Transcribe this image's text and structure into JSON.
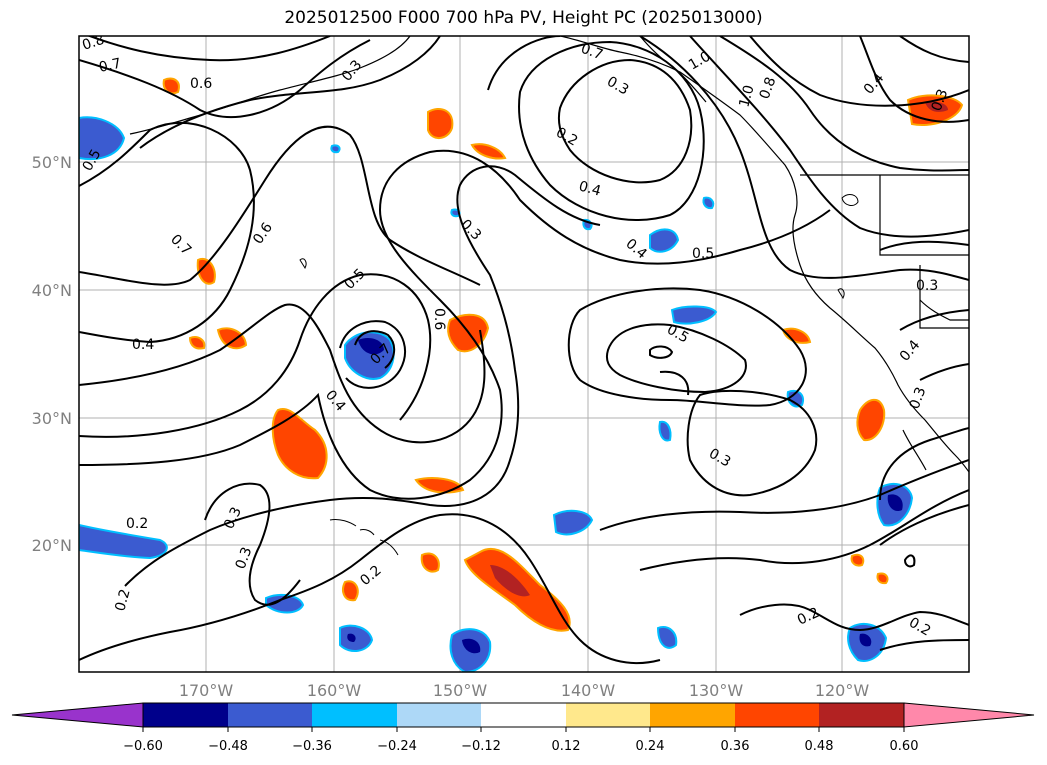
{
  "title": "2025012500 F000 700 hPa PV, Height PC (2025013000)",
  "map": {
    "lat_labels": [
      "50°N",
      "40°N",
      "30°N",
      "20°N"
    ],
    "lon_labels": [
      "170°W",
      "160°W",
      "150°W",
      "140°W",
      "130°W",
      "120°W"
    ],
    "contour_labels": [
      "0.8",
      "0.7",
      "0.6",
      "0.5",
      "0.7",
      "0.6",
      "0.4",
      "0.5",
      "0.6",
      "0.7",
      "0.4",
      "0.3",
      "0.3",
      "0.2",
      "0.3",
      "0.2",
      "0.2",
      "0.3",
      "0.4",
      "0.5",
      "0.5",
      "0.2",
      "0.3",
      "0.3",
      "0.4",
      "0.3",
      "0.7",
      "1.0",
      "1.0",
      "0.8",
      "0.2",
      "0.2",
      "0.4",
      "0.3",
      "0.4",
      "0.3"
    ],
    "colors": {
      "neg_060": "#9933cc",
      "neg_048": "#00008b",
      "neg_036": "#3b5bd0",
      "neg_024": "#00bfff",
      "neg_012": "#add8f7",
      "zero": "#ffffff",
      "pos_012": "#ffe88c",
      "pos_024": "#ffa500",
      "pos_036": "#ff4500",
      "pos_048": "#b22222",
      "pos_060": "#ff88aa"
    }
  },
  "colorbar": {
    "ticks": [
      "−0.60",
      "−0.48",
      "−0.36",
      "−0.24",
      "−0.12",
      "0.12",
      "0.24",
      "0.36",
      "0.48",
      "0.60"
    ]
  }
}
